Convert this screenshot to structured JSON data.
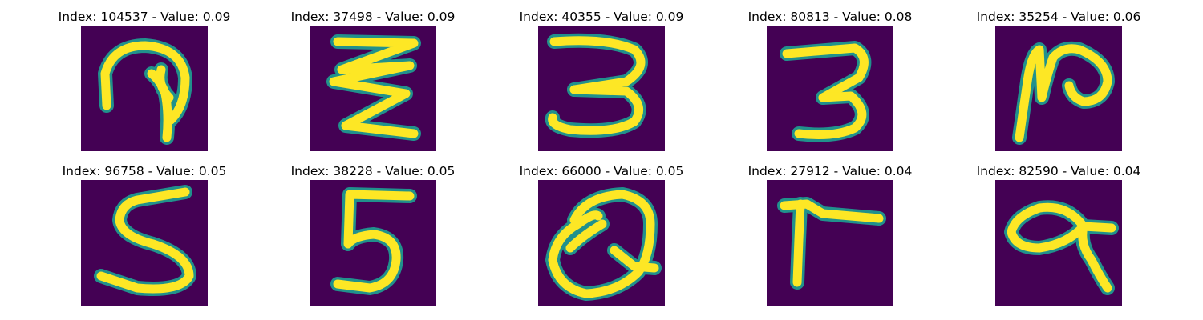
{
  "background_color": "#440154",
  "stroke_outer_color": "#21918c",
  "stroke_inner_color": "#fde725",
  "panels": [
    {
      "title": "Index: 104537 - Value: 0.09",
      "index": 104537,
      "value": 0.09,
      "glyph": "handwritten-2"
    },
    {
      "title": "Index: 37498 - Value: 0.09",
      "index": 37498,
      "value": 0.09,
      "glyph": "handwritten-3-zigzag"
    },
    {
      "title": "Index: 40355 - Value: 0.09",
      "index": 40355,
      "value": 0.09,
      "glyph": "handwritten-3"
    },
    {
      "title": "Index: 80813 - Value: 0.08",
      "index": 80813,
      "value": 0.08,
      "glyph": "handwritten-3"
    },
    {
      "title": "Index: 35254 - Value: 0.06",
      "index": 35254,
      "value": 0.06,
      "glyph": "handwritten-N"
    },
    {
      "title": "Index: 96758 - Value: 0.05",
      "index": 96758,
      "value": 0.05,
      "glyph": "handwritten-5"
    },
    {
      "title": "Index: 38228 - Value: 0.05",
      "index": 38228,
      "value": 0.05,
      "glyph": "handwritten-5"
    },
    {
      "title": "Index: 66000 - Value: 0.05",
      "index": 66000,
      "value": 0.05,
      "glyph": "handwritten-Q"
    },
    {
      "title": "Index: 27912 - Value: 0.04",
      "index": 27912,
      "value": 0.04,
      "glyph": "handwritten-7-rotated"
    },
    {
      "title": "Index: 82590 - Value: 0.04",
      "index": 82590,
      "value": 0.04,
      "glyph": "handwritten-a"
    }
  ]
}
